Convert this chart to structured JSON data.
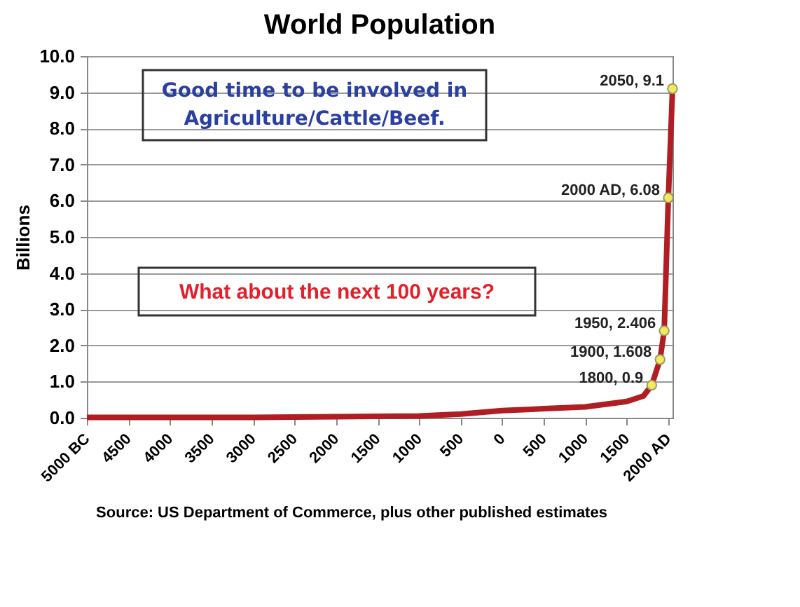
{
  "chart_data": {
    "type": "line",
    "title": "World Population",
    "ylabel": "Billions",
    "x": [
      -5000,
      -4000,
      -3000,
      -2000,
      -1000,
      -500,
      0,
      500,
      1000,
      1500,
      1700,
      1800,
      1900,
      1950,
      2000,
      2050
    ],
    "series": [
      {
        "color": "#b01e23",
        "marker": "none",
        "values": [
          0.01,
          0.01,
          0.01,
          0.03,
          0.05,
          0.1,
          0.2,
          0.25,
          0.3,
          0.45,
          0.6,
          0.9,
          1.608,
          2.406,
          6.08,
          9.1
        ]
      },
      {
        "type": "scatter",
        "color": "#f2ea5a",
        "marker": "circle",
        "x": [
          1800,
          1900,
          1950,
          2000,
          2050
        ],
        "values": [
          0.9,
          1.608,
          2.406,
          6.08,
          9.1
        ],
        "value_labels": [
          "1800, 0.9",
          "1900, 1.608",
          "1950, 2.406",
          "2000 AD, 6.08",
          "2050, 9.1"
        ]
      }
    ],
    "xlim": [
      -5000,
      2050
    ],
    "xticks": [
      {
        "value": -5000,
        "label": "5000 BC"
      },
      {
        "value": -4500,
        "label": "4500"
      },
      {
        "value": -4000,
        "label": "4000"
      },
      {
        "value": -3500,
        "label": "3500"
      },
      {
        "value": -3000,
        "label": "3000"
      },
      {
        "value": -2500,
        "label": "2500"
      },
      {
        "value": -2000,
        "label": "2000"
      },
      {
        "value": -1500,
        "label": "1500"
      },
      {
        "value": -1000,
        "label": "1000"
      },
      {
        "value": -500,
        "label": "500"
      },
      0,
      500,
      1000,
      1500,
      {
        "value": 2000,
        "label": "2000 AD"
      }
    ],
    "ylim": [
      0,
      10
    ],
    "yticks": [
      {
        "value": 0,
        "label": "0.0"
      },
      {
        "value": 1,
        "label": "1.0"
      },
      {
        "value": 2,
        "label": "2.0"
      },
      {
        "value": 3,
        "label": "3.0"
      },
      {
        "value": 4,
        "label": "4.0"
      },
      {
        "value": 5,
        "label": "5.0"
      },
      {
        "value": 6,
        "label": "6.0"
      },
      {
        "value": 7,
        "label": "7.0"
      },
      {
        "value": 8,
        "label": "8.0"
      },
      {
        "value": 9,
        "label": "9.0"
      },
      {
        "value": 10,
        "label": "10.0"
      }
    ],
    "grid": "y",
    "annotations": [
      "Good time to be involved in\nAgriculture/Cattle/Beef.",
      "What about the next 100 years?",
      "Source: US Department of Commerce, plus other published estimates"
    ]
  }
}
